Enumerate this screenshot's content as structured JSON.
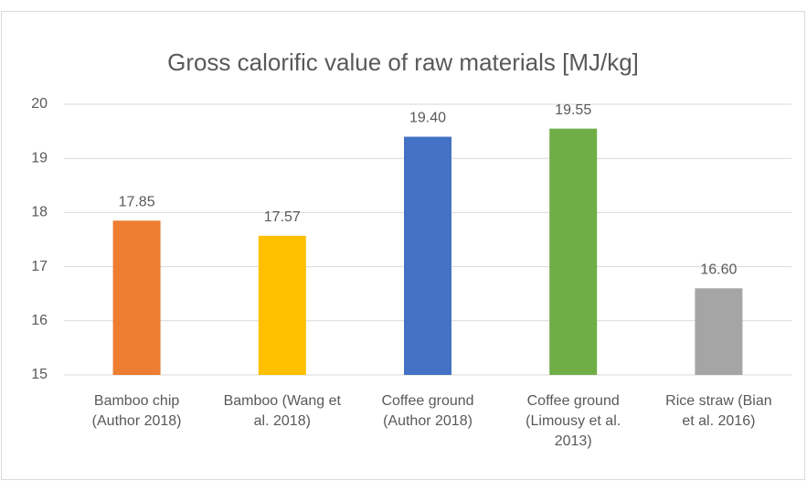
{
  "chart_data": {
    "type": "bar",
    "title": "Gross calorific value of raw materials [MJ/kg]",
    "categories": [
      "Bamboo chip (Author 2018)",
      "Bamboo (Wang et al. 2018)",
      "Coffee ground (Author 2018)",
      "Coffee ground (Limousy et al. 2013)",
      "Rice straw (Bian et al. 2016)"
    ],
    "values": [
      17.85,
      17.57,
      19.4,
      19.55,
      16.6
    ],
    "value_labels": [
      "17.85",
      "17.57",
      "19.40",
      "19.55",
      "16.60"
    ],
    "colors": [
      "#ed7d31",
      "#ffc000",
      "#4472c4",
      "#70ad47",
      "#a5a5a5"
    ],
    "ylim": [
      15,
      20
    ],
    "yticks": [
      15,
      16,
      17,
      18,
      19,
      20
    ],
    "grid": true
  }
}
